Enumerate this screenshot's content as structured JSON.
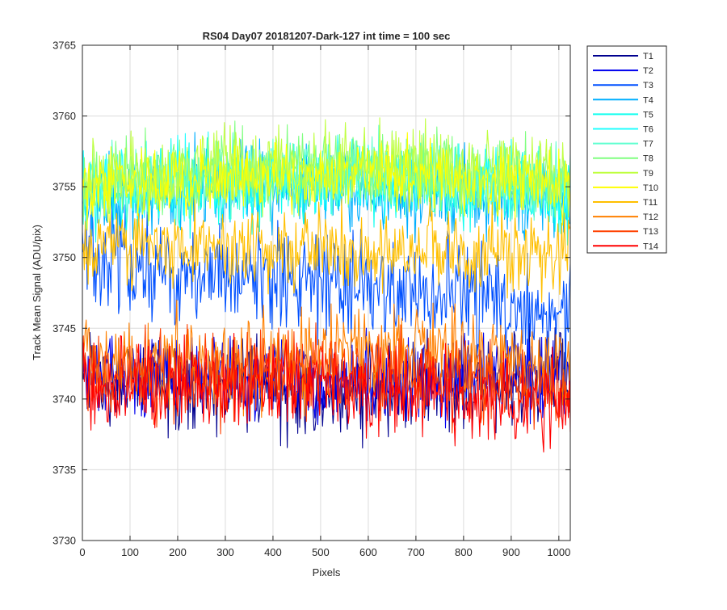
{
  "chart_data": {
    "type": "line",
    "title": "RS04 Day07 20181207-Dark-127 int time = 100 sec",
    "xlabel": "Pixels",
    "ylabel": "Track Mean Signal (ADU/pix)",
    "xlim": [
      0,
      1024
    ],
    "ylim": [
      3730,
      3765
    ],
    "xticks": [
      0,
      100,
      200,
      300,
      400,
      500,
      600,
      700,
      800,
      900,
      1000
    ],
    "yticks": [
      3730,
      3735,
      3740,
      3745,
      3750,
      3755,
      3760,
      3765
    ],
    "grid": true,
    "legend_position": "outside-top-right",
    "noise_note": "Each trace is a noisy per-pixel signal; values below are the approximate running mean level per track.",
    "series": [
      {
        "name": "T1",
        "color": "#00008F",
        "x": [
          0,
          256,
          512,
          768,
          1024
        ],
        "y": [
          3741.5,
          3741.0,
          3740.5,
          3741.0,
          3741.5
        ]
      },
      {
        "name": "T2",
        "color": "#0000EF",
        "x": [
          0,
          256,
          512,
          768,
          1024
        ],
        "y": [
          3742.0,
          3741.5,
          3741.0,
          3741.5,
          3742.0
        ]
      },
      {
        "name": "T3",
        "color": "#0050FF",
        "x": [
          0,
          256,
          512,
          768,
          1024
        ],
        "y": [
          3750.5,
          3748.5,
          3748.0,
          3747.5,
          3746.0
        ]
      },
      {
        "name": "T4",
        "color": "#00AFFF",
        "x": [
          0,
          256,
          512,
          768,
          1024
        ],
        "y": [
          3754.0,
          3755.0,
          3755.0,
          3754.5,
          3754.0
        ]
      },
      {
        "name": "T5",
        "color": "#10FFEF",
        "x": [
          0,
          256,
          512,
          768,
          1024
        ],
        "y": [
          3754.5,
          3755.0,
          3755.5,
          3755.0,
          3754.5
        ]
      },
      {
        "name": "T6",
        "color": "#20FFFF",
        "x": [
          0,
          256,
          512,
          768,
          1024
        ],
        "y": [
          3755.0,
          3755.5,
          3756.0,
          3755.5,
          3755.0
        ]
      },
      {
        "name": "T7",
        "color": "#60FFD0",
        "x": [
          0,
          256,
          512,
          768,
          1024
        ],
        "y": [
          3755.0,
          3755.5,
          3756.0,
          3755.5,
          3755.0
        ]
      },
      {
        "name": "T8",
        "color": "#80FF80",
        "x": [
          0,
          256,
          512,
          768,
          1024
        ],
        "y": [
          3755.5,
          3756.0,
          3756.5,
          3756.0,
          3755.5
        ]
      },
      {
        "name": "T9",
        "color": "#BFFF40",
        "x": [
          0,
          256,
          512,
          768,
          1024
        ],
        "y": [
          3755.5,
          3756.0,
          3756.5,
          3756.5,
          3756.0
        ]
      },
      {
        "name": "T10",
        "color": "#FFFF00",
        "x": [
          0,
          256,
          512,
          768,
          1024
        ],
        "y": [
          3755.0,
          3755.5,
          3756.0,
          3755.5,
          3755.0
        ]
      },
      {
        "name": "T11",
        "color": "#FFBF00",
        "x": [
          0,
          256,
          512,
          768,
          1024
        ],
        "y": [
          3751.0,
          3750.5,
          3750.5,
          3750.5,
          3750.0
        ]
      },
      {
        "name": "T12",
        "color": "#FF8000",
        "x": [
          0,
          256,
          512,
          768,
          1024
        ],
        "y": [
          3743.0,
          3742.5,
          3743.0,
          3743.5,
          3742.5
        ]
      },
      {
        "name": "T13",
        "color": "#FF4000",
        "x": [
          0,
          256,
          512,
          768,
          1024
        ],
        "y": [
          3741.5,
          3741.5,
          3742.0,
          3741.5,
          3740.5
        ]
      },
      {
        "name": "T14",
        "color": "#FF0000",
        "x": [
          0,
          256,
          512,
          768,
          1024
        ],
        "y": [
          3741.0,
          3741.0,
          3741.0,
          3740.5,
          3740.0
        ]
      }
    ],
    "noise_amplitude": [
      1.6,
      1.4,
      1.8,
      1.4,
      1.4,
      1.3,
      1.3,
      1.3,
      1.4,
      1.2,
      1.4,
      1.6,
      1.5,
      1.5
    ],
    "plot_order": [
      0,
      1,
      2,
      3,
      4,
      5,
      6,
      7,
      8,
      11,
      12,
      13,
      10,
      9
    ]
  }
}
